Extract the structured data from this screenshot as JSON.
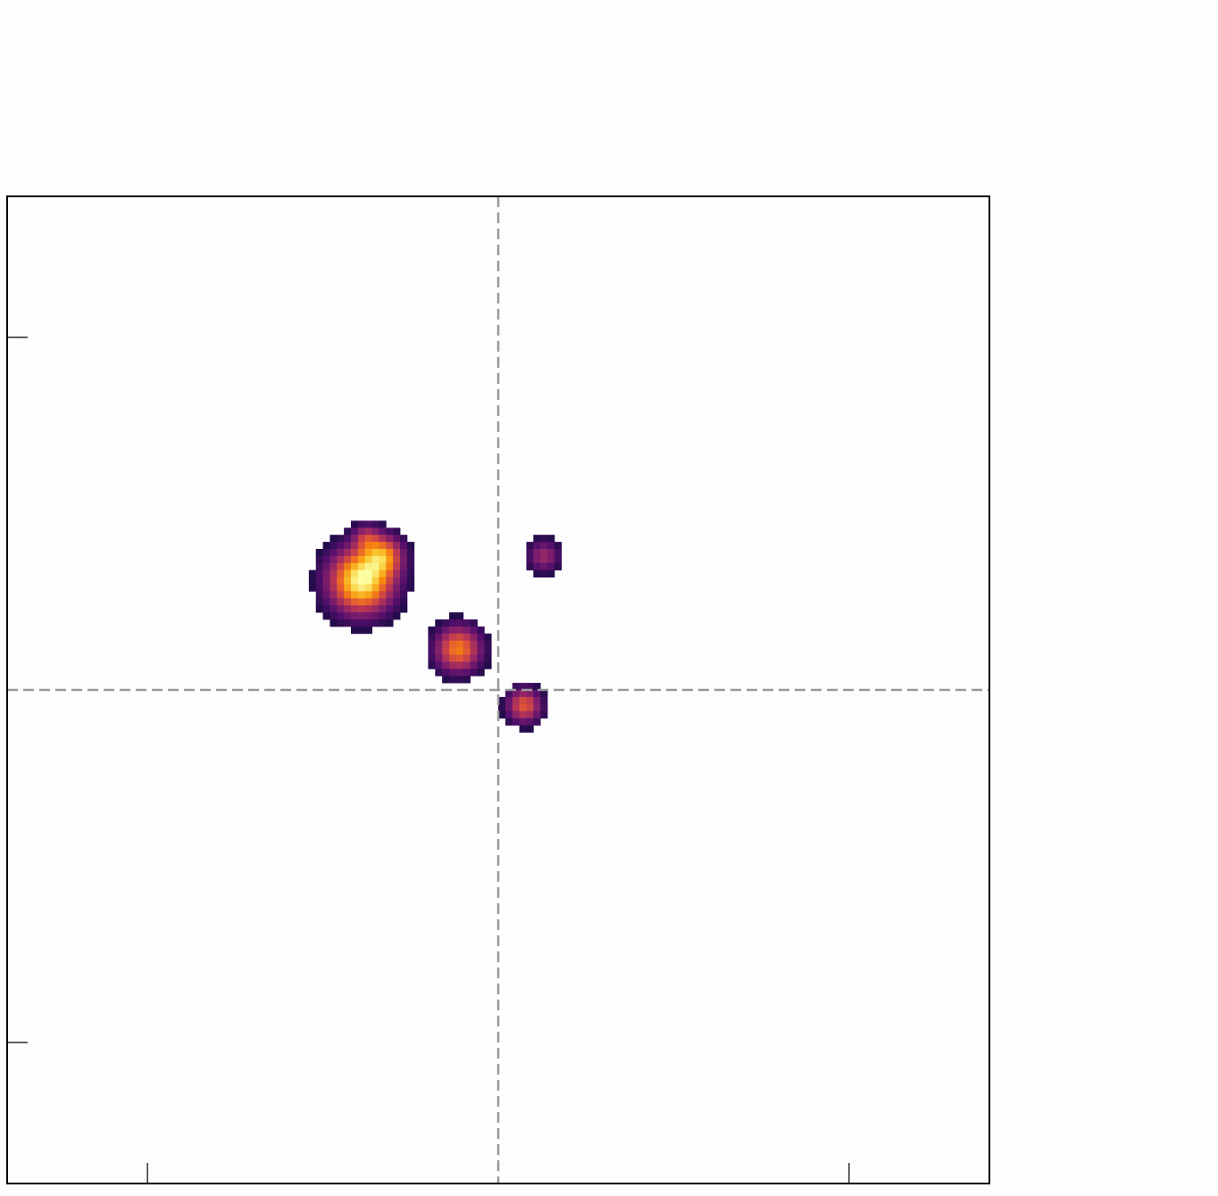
{
  "chart_data": {
    "type": "heatmap",
    "title": "",
    "xlabel": "",
    "ylabel": "",
    "xlim": [
      -0.7,
      0.7
    ],
    "ylim": [
      -0.7,
      0.7
    ],
    "xticks": [
      -0.5,
      0.5
    ],
    "yticks": [
      -0.5,
      0.5
    ],
    "tick_labels_shown": false,
    "grid": false,
    "crosshair": {
      "x": 0,
      "y": 0,
      "style": "dashed",
      "color": "#999999"
    },
    "colormap": "inferno_r",
    "background_color": "#fdfdfd",
    "frame_color": "#000000",
    "pixel_grid": {
      "nx": 140,
      "ny": 140
    },
    "sources": [
      {
        "x": -0.195,
        "y": 0.155,
        "peak": 1.0,
        "sigma": 0.028
      },
      {
        "x": -0.165,
        "y": 0.19,
        "peak": 0.6,
        "sigma": 0.018
      },
      {
        "x": -0.188,
        "y": 0.215,
        "peak": 0.3,
        "sigma": 0.012
      },
      {
        "x": -0.057,
        "y": 0.058,
        "peak": 0.62,
        "sigma": 0.02
      },
      {
        "x": 0.037,
        "y": -0.022,
        "peak": 0.5,
        "sigma": 0.015
      },
      {
        "x": 0.065,
        "y": 0.19,
        "peak": 0.28,
        "sigma": 0.014
      }
    ]
  }
}
